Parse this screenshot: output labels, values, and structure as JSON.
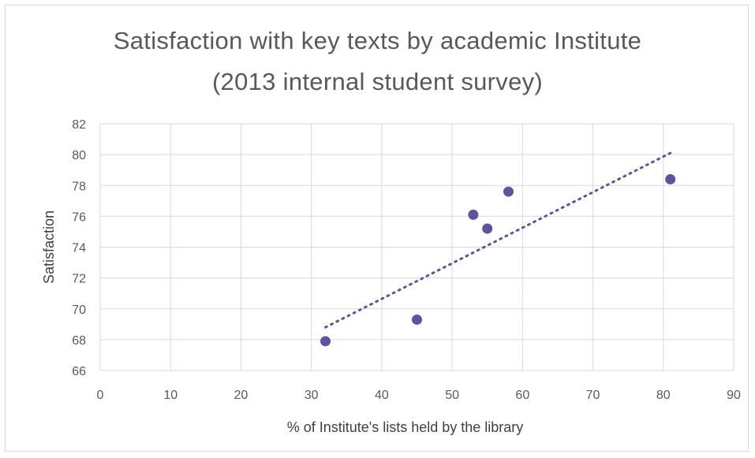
{
  "chart_data": {
    "type": "scatter",
    "title": "Satisfaction with key texts by academic Institute",
    "subtitle": "(2013 internal student survey)",
    "xlabel": "% of Institute's lists held by the library",
    "ylabel": "Satisfaction",
    "xlim": [
      0,
      90
    ],
    "ylim": [
      66,
      82
    ],
    "x_ticks": [
      0,
      10,
      20,
      30,
      40,
      50,
      60,
      70,
      80,
      90
    ],
    "y_ticks": [
      66,
      68,
      70,
      72,
      74,
      76,
      78,
      80,
      82
    ],
    "grid": true,
    "legend": "none",
    "series": [
      {
        "points": [
          {
            "x": 32,
            "y": 67.9
          },
          {
            "x": 45,
            "y": 69.3
          },
          {
            "x": 53,
            "y": 76.1
          },
          {
            "x": 55,
            "y": 75.2
          },
          {
            "x": 58,
            "y": 77.6
          },
          {
            "x": 81,
            "y": 78.4
          }
        ],
        "color": "#5b54a3"
      }
    ],
    "trendline": {
      "style": "dotted linear",
      "color": "#5b54a3",
      "x_range": [
        32,
        81
      ],
      "y_range": [
        68.8,
        80.1
      ]
    }
  }
}
